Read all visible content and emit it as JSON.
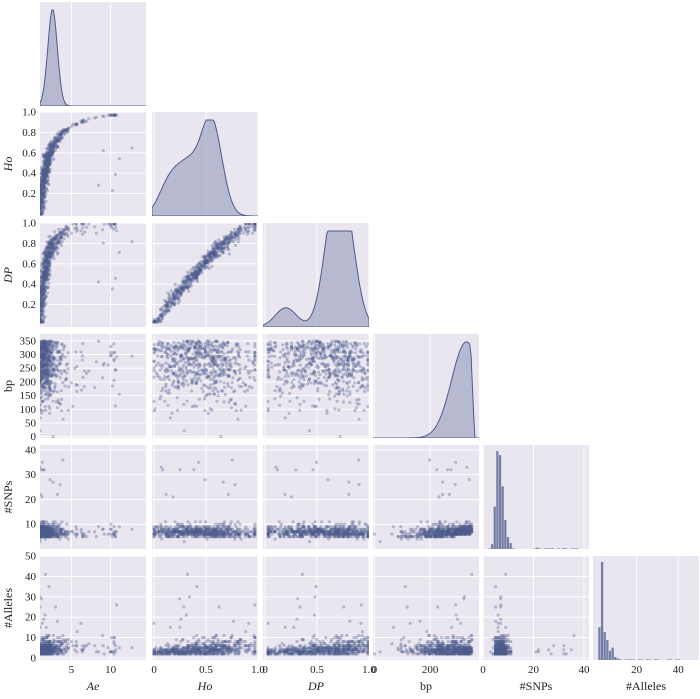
{
  "chart_data": {
    "type": "scatter",
    "title": "",
    "subtitle": "",
    "kind": "pairplot",
    "description_note": "",
    "variables": [
      {
        "key": "Ae",
        "label": "Ae",
        "italic": true,
        "ticks": [
          5,
          10
        ],
        "range": [
          1,
          14.5
        ]
      },
      {
        "key": "Ho",
        "label": "Ho",
        "italic": true,
        "ticks": [
          0.2,
          0.4,
          0.6,
          0.8,
          1.0
        ],
        "xticks": [
          "0",
          "0.5",
          "1.0"
        ],
        "xtick_values": [
          0,
          0.5,
          1.0
        ],
        "range": [
          -0.02,
          1.0
        ]
      },
      {
        "key": "DP",
        "label": "DP",
        "italic": true,
        "ticks": [
          0.2,
          0.4,
          0.6,
          0.8,
          1.0
        ],
        "xticks": [
          "0",
          "0.5",
          "1.0"
        ],
        "xtick_values": [
          0,
          0.5,
          1.0
        ],
        "range": [
          -0.02,
          1.0
        ]
      },
      {
        "key": "bp",
        "label": "bp",
        "italic": false,
        "ticks": [
          0,
          50,
          100,
          150,
          200,
          250,
          300,
          350
        ],
        "yticks": [
          "0",
          "50",
          "100",
          "150",
          "200",
          "250",
          "300",
          "350"
        ],
        "xticks": [
          "0",
          "200"
        ],
        "xtick_values": [
          0,
          200
        ],
        "range": [
          -5,
          375
        ]
      },
      {
        "key": "SNPs",
        "label": "#SNPs",
        "italic": false,
        "ticks": [
          10,
          20,
          30,
          40
        ],
        "xticks": [
          "0",
          "20",
          "40"
        ],
        "xtick_values": [
          0,
          20,
          40
        ],
        "range": [
          0,
          42
        ]
      },
      {
        "key": "Alleles",
        "label": "#Alleles",
        "italic": false,
        "ticks": [
          0,
          10,
          20,
          30,
          40,
          50
        ],
        "xticks": [
          "20",
          "40"
        ],
        "xtick_values": [
          20,
          40
        ],
        "range": [
          -1,
          50
        ]
      }
    ],
    "diagonal": [
      {
        "type": "kde",
        "peaks": [
          {
            "x": 2.6,
            "y": 1.0
          }
        ]
      },
      {
        "type": "kde",
        "peaks": [
          {
            "x": 0.15,
            "y": 0.35
          },
          {
            "x": 0.33,
            "y": 0.45
          },
          {
            "x": 0.55,
            "y": 1.0
          }
        ]
      },
      {
        "type": "kde",
        "peaks": [
          {
            "x": 0.2,
            "y": 0.2
          },
          {
            "x": 0.66,
            "y": 1.0
          },
          {
            "x": 0.78,
            "y": 0.88
          }
        ]
      },
      {
        "type": "kde",
        "peaks": [
          {
            "x": 330,
            "y": 1.0
          }
        ]
      },
      {
        "type": "histogram",
        "peaks": [
          {
            "x": 3,
            "y": 1.0
          }
        ]
      },
      {
        "type": "histogram",
        "peaks": [
          {
            "x": 4,
            "y": 1.0
          }
        ]
      }
    ],
    "grid": true,
    "colors": {
      "points": "#4c5b8c",
      "fill": "#8b93b5",
      "panel_bg": "#eae6f0",
      "grid": "#ffffff",
      "text": "#222222"
    }
  }
}
